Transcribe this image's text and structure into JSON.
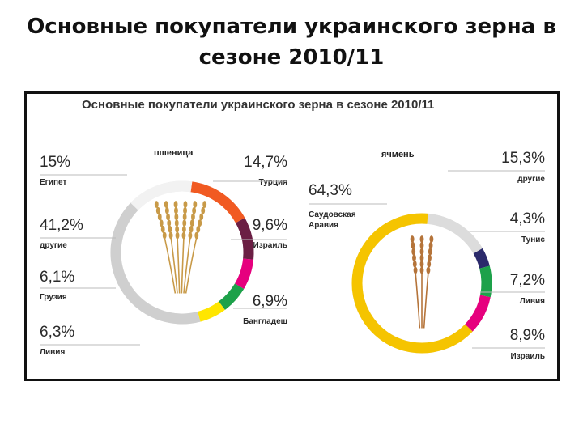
{
  "slide": {
    "title_line1": "Основные покупатели украинского зерна в",
    "title_line2": "сезоне 2010/11"
  },
  "chart_data": [
    {
      "type": "pie",
      "title": "Основные покупатели украинского зерна в сезоне 2010/11",
      "subtitle": "пшеница",
      "slices": [
        {
          "label": "Египет",
          "value": 15,
          "display": "15%",
          "color": "#f2f2f2"
        },
        {
          "label": "Турция",
          "value": 14.7,
          "display": "14,7%",
          "color": "#f15a22"
        },
        {
          "label": "Израиль",
          "value": 9.6,
          "display": "9,6%",
          "color": "#6b1f44"
        },
        {
          "label": "Бангладеш",
          "value": 6.9,
          "display": "6,9%",
          "color": "#e6007e"
        },
        {
          "label": "Ливия",
          "value": 6.3,
          "display": "6,3%",
          "color": "#1da14a"
        },
        {
          "label": "Грузия",
          "value": 6.1,
          "display": "6,1%",
          "color": "#ffe600"
        },
        {
          "label": "другие",
          "value": 41.2,
          "display": "41,2%",
          "color": "#cfcfcf"
        }
      ]
    },
    {
      "type": "pie",
      "subtitle": "ячмень",
      "slices": [
        {
          "label": "Саудовская Аравия",
          "value": 64.3,
          "display": "64,3%",
          "color": "#f5c400"
        },
        {
          "label": "другие",
          "value": 15.3,
          "display": "15,3%",
          "color": "#dcdcdc"
        },
        {
          "label": "Тунис",
          "value": 4.3,
          "display": "4,3%",
          "color": "#2b2a6b"
        },
        {
          "label": "Ливия",
          "value": 7.2,
          "display": "7,2%",
          "color": "#1da14a"
        },
        {
          "label": "Израиль",
          "value": 8.9,
          "display": "8,9%",
          "color": "#e6007e"
        }
      ]
    }
  ]
}
